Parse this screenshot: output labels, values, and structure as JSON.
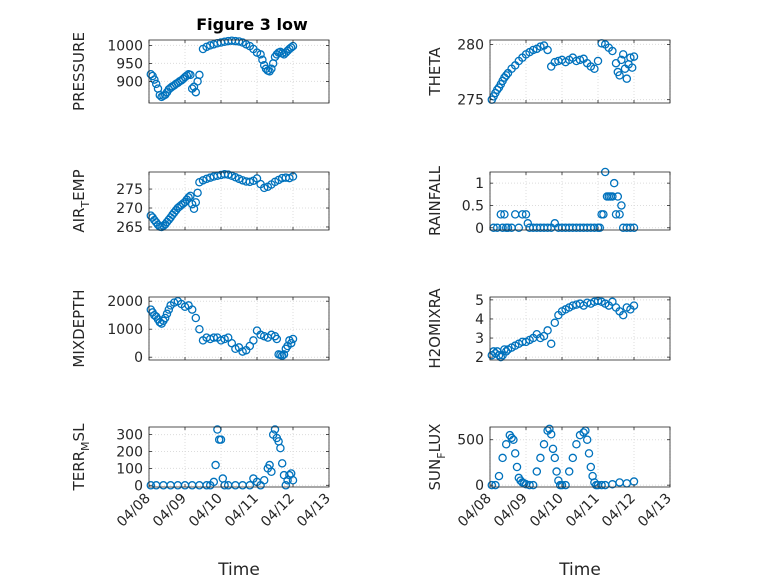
{
  "figure": {
    "title": "Figure 3 low",
    "marker_color": "#0072BD",
    "background": "#ffffff"
  },
  "chart_data": [
    {
      "type": "scatter",
      "title": "Figure 3 low",
      "ylabel": "PRESSURE",
      "xlim": [
        0,
        5
      ],
      "ylim": [
        840,
        1015
      ],
      "yticks": [
        900,
        950,
        1000
      ],
      "ytick_labels": [
        "900",
        "950",
        "1000"
      ],
      "xticks": [
        0,
        1,
        2,
        3,
        4,
        5
      ],
      "xtick_labels": [
        "04/08",
        "04/09",
        "04/10",
        "04/11",
        "04/12",
        "04/13"
      ],
      "show_xtick_labels": false,
      "xlabel": "",
      "grid": true,
      "x": [
        0.05,
        0.1,
        0.15,
        0.2,
        0.25,
        0.3,
        0.35,
        0.4,
        0.45,
        0.5,
        0.55,
        0.6,
        0.65,
        0.7,
        0.75,
        0.8,
        0.85,
        0.9,
        0.95,
        1.0,
        1.05,
        1.1,
        1.15,
        1.2,
        1.25,
        1.3,
        1.35,
        1.4,
        1.5,
        1.6,
        1.7,
        1.8,
        1.9,
        2.0,
        2.1,
        2.2,
        2.3,
        2.4,
        2.5,
        2.6,
        2.7,
        2.8,
        2.9,
        3.0,
        3.1,
        3.15,
        3.2,
        3.25,
        3.3,
        3.35,
        3.4,
        3.45,
        3.5,
        3.55,
        3.6,
        3.65,
        3.7,
        3.75,
        3.8,
        3.85,
        3.9,
        3.95,
        4.0
      ],
      "y": [
        920,
        915,
        905,
        893,
        880,
        862,
        857,
        860,
        863,
        870,
        878,
        882,
        886,
        889,
        893,
        896,
        900,
        903,
        907,
        912,
        916,
        920,
        918,
        880,
        885,
        870,
        900,
        918,
        990,
        996,
        1000,
        1003,
        1006,
        1008,
        1010,
        1012,
        1013,
        1012,
        1011,
        1008,
        1003,
        998,
        990,
        980,
        975,
        960,
        945,
        935,
        930,
        928,
        935,
        950,
        968,
        975,
        980,
        982,
        978,
        975,
        980,
        985,
        990,
        994,
        998
      ]
    },
    {
      "type": "scatter",
      "ylabel": "THETA",
      "xlim": [
        0,
        5
      ],
      "ylim": [
        274.7,
        280.4
      ],
      "yticks": [
        275,
        280
      ],
      "ytick_labels": [
        "275",
        "280"
      ],
      "show_xtick_labels": false,
      "xlabel": "",
      "grid": true,
      "x": [
        0.05,
        0.1,
        0.15,
        0.2,
        0.25,
        0.3,
        0.35,
        0.4,
        0.45,
        0.5,
        0.6,
        0.7,
        0.8,
        0.9,
        1.0,
        1.1,
        1.2,
        1.3,
        1.4,
        1.5,
        1.6,
        1.7,
        1.8,
        1.9,
        2.0,
        2.1,
        2.2,
        2.3,
        2.4,
        2.5,
        2.6,
        2.7,
        2.8,
        2.9,
        3.0,
        3.1,
        3.2,
        3.3,
        3.4,
        3.5,
        3.55,
        3.6,
        3.65,
        3.7,
        3.75,
        3.8,
        3.85,
        3.9,
        3.95,
        4.0
      ],
      "y": [
        275.0,
        275.3,
        275.6,
        275.9,
        276.1,
        276.4,
        276.7,
        277.0,
        277.2,
        277.4,
        277.8,
        278.1,
        278.5,
        278.8,
        279.1,
        279.3,
        279.5,
        279.6,
        279.8,
        279.9,
        279.5,
        278.0,
        278.4,
        278.5,
        278.6,
        278.4,
        278.6,
        278.8,
        278.5,
        278.6,
        278.7,
        278.3,
        278.0,
        277.8,
        278.5,
        280.1,
        280.0,
        279.7,
        279.4,
        278.3,
        277.5,
        277.2,
        278.6,
        279.1,
        277.8,
        276.9,
        278.2,
        278.8,
        277.9,
        278.9
      ]
    },
    {
      "type": "scatter",
      "ylabel": "AIR_TEMP",
      "xlim": [
        0,
        5
      ],
      "ylim": [
        264.2,
        279.5
      ],
      "yticks": [
        265,
        270,
        275
      ],
      "ytick_labels": [
        "265",
        "270",
        "275"
      ],
      "show_xtick_labels": false,
      "xlabel": "",
      "grid": true,
      "x": [
        0.05,
        0.1,
        0.15,
        0.2,
        0.25,
        0.3,
        0.35,
        0.4,
        0.45,
        0.5,
        0.55,
        0.6,
        0.65,
        0.7,
        0.75,
        0.8,
        0.85,
        0.9,
        0.95,
        1.0,
        1.05,
        1.1,
        1.15,
        1.2,
        1.25,
        1.3,
        1.35,
        1.4,
        1.5,
        1.6,
        1.7,
        1.8,
        1.9,
        2.0,
        2.1,
        2.2,
        2.3,
        2.4,
        2.5,
        2.6,
        2.7,
        2.8,
        2.9,
        3.0,
        3.1,
        3.2,
        3.3,
        3.4,
        3.5,
        3.6,
        3.7,
        3.8,
        3.9,
        4.0
      ],
      "y": [
        268.0,
        267.5,
        266.8,
        266.2,
        265.6,
        265.1,
        265.0,
        265.3,
        265.7,
        266.3,
        266.9,
        267.5,
        268.2,
        268.8,
        269.4,
        270.0,
        270.4,
        270.8,
        271.2,
        271.6,
        272.2,
        272.8,
        273.2,
        271.0,
        269.8,
        271.5,
        274.0,
        276.8,
        277.3,
        277.7,
        278.0,
        278.3,
        278.5,
        278.7,
        278.9,
        278.8,
        278.5,
        278.1,
        277.7,
        277.3,
        277.0,
        276.9,
        277.2,
        277.8,
        276.3,
        275.3,
        275.6,
        276.2,
        276.9,
        277.4,
        277.9,
        278.0,
        277.9,
        278.3
      ]
    },
    {
      "type": "scatter",
      "ylabel": "RAINFALL",
      "xlim": [
        0,
        5
      ],
      "ylim": [
        -0.05,
        1.25
      ],
      "yticks": [
        0,
        0.5,
        1
      ],
      "ytick_labels": [
        "0",
        "0.5",
        "1"
      ],
      "show_xtick_labels": false,
      "xlabel": "",
      "grid": true,
      "x": [
        0.1,
        0.2,
        0.3,
        0.35,
        0.4,
        0.45,
        0.5,
        0.6,
        0.7,
        0.8,
        0.9,
        1.0,
        1.05,
        1.1,
        1.2,
        1.3,
        1.4,
        1.5,
        1.6,
        1.7,
        1.8,
        1.9,
        2.0,
        2.1,
        2.2,
        2.3,
        2.4,
        2.5,
        2.6,
        2.7,
        2.8,
        2.9,
        3.0,
        3.05,
        3.1,
        3.15,
        3.2,
        3.25,
        3.3,
        3.35,
        3.4,
        3.45,
        3.5,
        3.55,
        3.6,
        3.65,
        3.7,
        3.8,
        3.9,
        4.0
      ],
      "y": [
        0,
        0,
        0.3,
        0,
        0.3,
        0,
        0,
        0,
        0.3,
        0,
        0.3,
        0.3,
        0.1,
        0,
        0,
        0,
        0,
        0,
        0,
        0,
        0.1,
        0,
        0,
        0,
        0,
        0,
        0,
        0,
        0,
        0,
        0,
        0,
        0,
        0,
        0.3,
        0.3,
        1.25,
        0.7,
        0.7,
        0.7,
        0.7,
        1.0,
        0.3,
        0.7,
        0.3,
        0.5,
        0,
        0,
        0,
        0
      ]
    },
    {
      "type": "scatter",
      "ylabel": "MIXDEPTH",
      "xlim": [
        0,
        5
      ],
      "ylim": [
        -100,
        2150
      ],
      "yticks": [
        0,
        1000,
        2000
      ],
      "ytick_labels": [
        "0",
        "1000",
        "2000"
      ],
      "show_xtick_labels": false,
      "xlabel": "",
      "grid": true,
      "x": [
        0.05,
        0.1,
        0.15,
        0.2,
        0.25,
        0.3,
        0.35,
        0.4,
        0.45,
        0.5,
        0.55,
        0.6,
        0.7,
        0.8,
        0.9,
        1.0,
        1.1,
        1.2,
        1.3,
        1.4,
        1.5,
        1.6,
        1.7,
        1.8,
        1.9,
        2.0,
        2.1,
        2.2,
        2.3,
        2.4,
        2.5,
        2.6,
        2.7,
        2.8,
        2.9,
        3.0,
        3.1,
        3.2,
        3.3,
        3.4,
        3.5,
        3.55,
        3.6,
        3.65,
        3.7,
        3.75,
        3.8,
        3.85,
        3.9,
        3.95,
        4.0
      ],
      "y": [
        1700,
        1600,
        1500,
        1450,
        1350,
        1250,
        1200,
        1300,
        1400,
        1550,
        1700,
        1850,
        1950,
        2000,
        1900,
        1800,
        1850,
        1700,
        1400,
        1000,
        600,
        700,
        650,
        700,
        700,
        600,
        650,
        700,
        500,
        300,
        350,
        200,
        250,
        400,
        600,
        950,
        800,
        750,
        700,
        800,
        750,
        650,
        100,
        80,
        50,
        100,
        300,
        400,
        600,
        500,
        650
      ]
    },
    {
      "type": "scatter",
      "ylabel": "H2OMIXRA",
      "xlim": [
        0,
        5
      ],
      "ylim": [
        1.85,
        5.15
      ],
      "yticks": [
        2,
        3,
        4,
        5
      ],
      "ytick_labels": [
        "2",
        "3",
        "4",
        "5"
      ],
      "show_xtick_labels": false,
      "xlabel": "",
      "grid": true,
      "x": [
        0.05,
        0.1,
        0.15,
        0.2,
        0.25,
        0.3,
        0.35,
        0.4,
        0.45,
        0.5,
        0.6,
        0.7,
        0.8,
        0.9,
        1.0,
        1.1,
        1.2,
        1.3,
        1.4,
        1.5,
        1.6,
        1.7,
        1.8,
        1.9,
        2.0,
        2.1,
        2.2,
        2.3,
        2.4,
        2.5,
        2.6,
        2.7,
        2.8,
        2.9,
        3.0,
        3.1,
        3.2,
        3.3,
        3.4,
        3.5,
        3.6,
        3.7,
        3.8,
        3.9,
        4.0
      ],
      "y": [
        2.1,
        2.3,
        2.2,
        2.3,
        2.1,
        2.0,
        2.1,
        2.4,
        2.3,
        2.4,
        2.5,
        2.6,
        2.7,
        2.8,
        2.8,
        2.9,
        3.0,
        3.2,
        3.0,
        3.1,
        3.4,
        2.7,
        3.8,
        4.2,
        4.4,
        4.5,
        4.6,
        4.7,
        4.75,
        4.8,
        4.7,
        4.85,
        4.8,
        4.9,
        4.95,
        4.9,
        4.8,
        4.7,
        4.9,
        4.6,
        4.4,
        4.2,
        4.6,
        4.5,
        4.7
      ]
    },
    {
      "type": "scatter",
      "ylabel": "TERR_MSL",
      "xlim": [
        0,
        5
      ],
      "ylim": [
        -10,
        345
      ],
      "yticks": [
        0,
        100,
        200,
        300
      ],
      "ytick_labels": [
        "0",
        "100",
        "200",
        "300"
      ],
      "xticks": [
        0,
        1,
        2,
        3,
        4,
        5
      ],
      "xtick_labels": [
        "04/08",
        "04/09",
        "04/10",
        "04/11",
        "04/12",
        "04/13"
      ],
      "show_xtick_labels": true,
      "xlabel": "Time",
      "grid": true,
      "x": [
        0.05,
        0.2,
        0.4,
        0.6,
        0.8,
        1.0,
        1.2,
        1.4,
        1.6,
        1.7,
        1.8,
        1.85,
        1.9,
        1.95,
        2.0,
        2.05,
        2.1,
        2.2,
        2.4,
        2.6,
        2.8,
        2.9,
        3.0,
        3.1,
        3.2,
        3.3,
        3.35,
        3.4,
        3.45,
        3.5,
        3.55,
        3.6,
        3.65,
        3.7,
        3.75,
        3.8,
        3.85,
        3.9,
        3.95,
        4.0
      ],
      "y": [
        0,
        0,
        0,
        0,
        0,
        0,
        0,
        0,
        0,
        0,
        20,
        120,
        330,
        270,
        270,
        40,
        0,
        0,
        0,
        0,
        0,
        40,
        20,
        0,
        30,
        100,
        120,
        80,
        300,
        330,
        280,
        260,
        220,
        130,
        60,
        0,
        30,
        60,
        70,
        30
      ]
    },
    {
      "type": "scatter",
      "ylabel": "SUN_FLUX",
      "xlim": [
        0,
        5
      ],
      "ylim": [
        -20,
        640
      ],
      "yticks": [
        0,
        500
      ],
      "ytick_labels": [
        "0",
        "500"
      ],
      "xticks": [
        0,
        1,
        2,
        3,
        4,
        5
      ],
      "xtick_labels": [
        "04/08",
        "04/09",
        "04/10",
        "04/11",
        "04/12",
        "04/13"
      ],
      "show_xtick_labels": true,
      "xlabel": "Time",
      "grid": true,
      "x": [
        0.05,
        0.15,
        0.25,
        0.35,
        0.45,
        0.55,
        0.6,
        0.65,
        0.7,
        0.75,
        0.8,
        0.85,
        0.9,
        0.95,
        1.0,
        1.1,
        1.2,
        1.3,
        1.4,
        1.5,
        1.6,
        1.65,
        1.7,
        1.75,
        1.8,
        1.85,
        1.9,
        1.95,
        2.0,
        2.1,
        2.2,
        2.3,
        2.4,
        2.5,
        2.6,
        2.65,
        2.7,
        2.75,
        2.8,
        2.85,
        2.9,
        2.95,
        3.0,
        3.1,
        3.2,
        3.4,
        3.6,
        3.8,
        4.0
      ],
      "y": [
        0,
        0,
        100,
        300,
        450,
        550,
        520,
        500,
        350,
        200,
        80,
        50,
        30,
        20,
        10,
        0,
        0,
        150,
        300,
        450,
        600,
        620,
        560,
        400,
        300,
        150,
        50,
        0,
        0,
        0,
        150,
        300,
        450,
        550,
        580,
        600,
        500,
        350,
        200,
        100,
        30,
        0,
        0,
        0,
        0,
        10,
        30,
        20,
        40
      ]
    }
  ]
}
